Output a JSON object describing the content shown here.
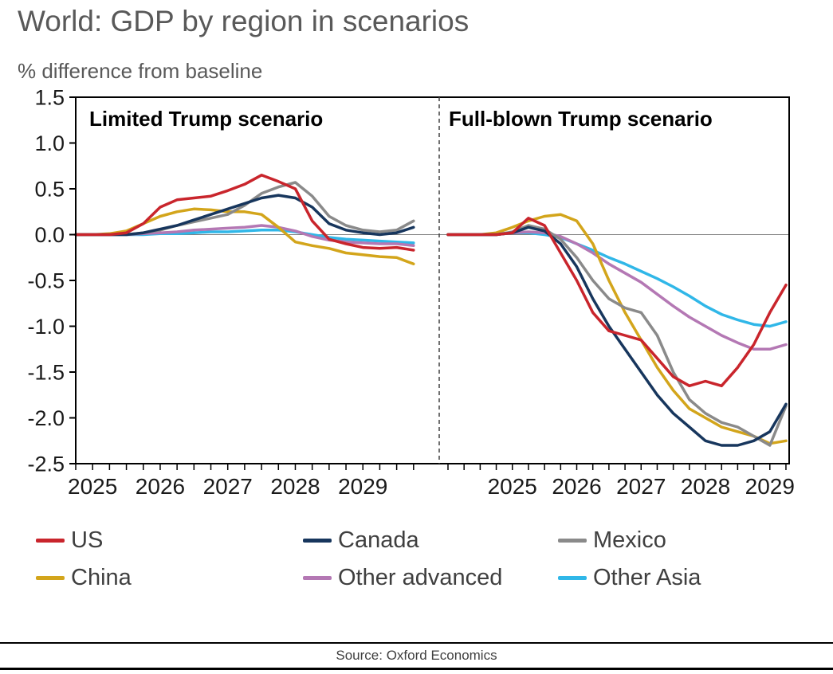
{
  "title": "World: GDP by region in scenarios",
  "subtitle": "% difference from baseline",
  "source": "Source: Oxford Economics",
  "chart_data": {
    "type": "line",
    "title": "World: GDP by region in scenarios",
    "ylabel": "% difference from baseline",
    "ylim": [
      -2.5,
      1.5
    ],
    "ytick_step": 0.5,
    "grid": false,
    "zero_line": true,
    "legend_position": "bottom",
    "x_years": [
      2025,
      2026,
      2027,
      2028,
      2029
    ],
    "panels": [
      {
        "label": "Limited Trump scenario",
        "xlim": [
          2024.75,
          2030.0
        ],
        "x": [
          2024.75,
          2025.0,
          2025.25,
          2025.5,
          2025.75,
          2026.0,
          2026.25,
          2026.5,
          2026.75,
          2027.0,
          2027.25,
          2027.5,
          2027.75,
          2028.0,
          2028.25,
          2028.5,
          2028.75,
          2029.0,
          2029.25,
          2029.5,
          2029.75
        ],
        "series": [
          {
            "name": "US",
            "color": "#C9252C",
            "values": [
              0,
              0,
              0,
              0.02,
              0.12,
              0.3,
              0.38,
              0.4,
              0.42,
              0.48,
              0.55,
              0.65,
              0.58,
              0.5,
              0.15,
              -0.05,
              -0.1,
              -0.14,
              -0.15,
              -0.14,
              -0.17
            ]
          },
          {
            "name": "Canada",
            "color": "#17365D",
            "values": [
              0,
              0,
              0,
              0,
              0.02,
              0.06,
              0.1,
              0.16,
              0.22,
              0.28,
              0.34,
              0.4,
              0.43,
              0.4,
              0.3,
              0.12,
              0.05,
              0.02,
              0.0,
              0.02,
              0.08
            ]
          },
          {
            "name": "Mexico",
            "color": "#8A8A8A",
            "values": [
              0,
              0,
              0,
              0,
              0.02,
              0.05,
              0.1,
              0.14,
              0.18,
              0.22,
              0.32,
              0.45,
              0.52,
              0.57,
              0.42,
              0.2,
              0.1,
              0.05,
              0.03,
              0.05,
              0.15
            ]
          },
          {
            "name": "China",
            "color": "#D3A51B",
            "values": [
              0,
              0,
              0.01,
              0.04,
              0.12,
              0.2,
              0.25,
              0.28,
              0.27,
              0.25,
              0.25,
              0.22,
              0.08,
              -0.08,
              -0.12,
              -0.15,
              -0.2,
              -0.22,
              -0.24,
              -0.25,
              -0.32
            ]
          },
          {
            "name": "Other advanced",
            "color": "#B478B4",
            "values": [
              0,
              0,
              0,
              0,
              0.01,
              0.02,
              0.03,
              0.05,
              0.06,
              0.07,
              0.08,
              0.1,
              0.08,
              0.04,
              -0.02,
              -0.06,
              -0.08,
              -0.09,
              -0.1,
              -0.1,
              -0.12
            ]
          },
          {
            "name": "Other Asia",
            "color": "#30B7E8",
            "values": [
              0,
              0,
              0,
              0,
              0,
              0.01,
              0.01,
              0.02,
              0.03,
              0.03,
              0.04,
              0.05,
              0.05,
              0.03,
              0.0,
              -0.03,
              -0.05,
              -0.06,
              -0.07,
              -0.08,
              -0.09
            ]
          }
        ]
      },
      {
        "label": "Full-blown Trump scenario",
        "xlim": [
          2024.0,
          2029.3
        ],
        "x": [
          2024.0,
          2024.25,
          2024.5,
          2024.75,
          2025.0,
          2025.25,
          2025.5,
          2025.75,
          2026.0,
          2026.25,
          2026.5,
          2026.75,
          2027.0,
          2027.25,
          2027.5,
          2027.75,
          2028.0,
          2028.25,
          2028.5,
          2028.75,
          2029.0,
          2029.25
        ],
        "series": [
          {
            "name": "US",
            "color": "#C9252C",
            "values": [
              0,
              0,
              0,
              0,
              0.02,
              0.18,
              0.1,
              -0.2,
              -0.5,
              -0.85,
              -1.05,
              -1.1,
              -1.15,
              -1.35,
              -1.55,
              -1.65,
              -1.6,
              -1.65,
              -1.45,
              -1.2,
              -0.85,
              -0.55
            ]
          },
          {
            "name": "Canada",
            "color": "#17365D",
            "values": [
              0,
              0,
              0,
              0,
              0.02,
              0.08,
              0.04,
              -0.1,
              -0.35,
              -0.7,
              -1.0,
              -1.25,
              -1.5,
              -1.75,
              -1.95,
              -2.1,
              -2.25,
              -2.3,
              -2.3,
              -2.25,
              -2.15,
              -1.85
            ]
          },
          {
            "name": "Mexico",
            "color": "#8A8A8A",
            "values": [
              0,
              0,
              0,
              0,
              0.03,
              0.1,
              0.06,
              -0.05,
              -0.25,
              -0.5,
              -0.7,
              -0.8,
              -0.85,
              -1.1,
              -1.5,
              -1.8,
              -1.95,
              -2.05,
              -2.1,
              -2.2,
              -2.3,
              -1.87
            ]
          },
          {
            "name": "China",
            "color": "#D3A51B",
            "values": [
              0,
              0,
              0,
              0.02,
              0.08,
              0.15,
              0.2,
              0.22,
              0.15,
              -0.1,
              -0.5,
              -0.85,
              -1.15,
              -1.45,
              -1.7,
              -1.9,
              -2.0,
              -2.1,
              -2.15,
              -2.2,
              -2.28,
              -2.25
            ]
          },
          {
            "name": "Other advanced",
            "color": "#B478B4",
            "values": [
              0,
              0,
              0,
              0,
              0.02,
              0.03,
              0.02,
              -0.02,
              -0.1,
              -0.2,
              -0.32,
              -0.42,
              -0.52,
              -0.65,
              -0.78,
              -0.9,
              -1.0,
              -1.1,
              -1.18,
              -1.25,
              -1.25,
              -1.2
            ]
          },
          {
            "name": "Other Asia",
            "color": "#30B7E8",
            "values": [
              0,
              0,
              0,
              0,
              0.02,
              0.02,
              0.0,
              -0.03,
              -0.1,
              -0.17,
              -0.25,
              -0.32,
              -0.4,
              -0.48,
              -0.57,
              -0.67,
              -0.78,
              -0.87,
              -0.93,
              -0.98,
              -1.0,
              -0.95
            ]
          }
        ]
      }
    ]
  }
}
